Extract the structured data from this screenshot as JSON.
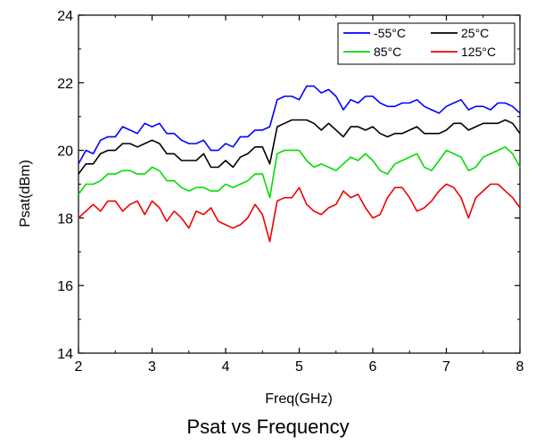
{
  "caption": "Psat vs Frequency",
  "chart_data": {
    "type": "line",
    "title": "",
    "xlabel": "Freq(GHz)",
    "ylabel": "Psat(dBm)",
    "xlim": [
      2,
      8
    ],
    "ylim": [
      14,
      24
    ],
    "xticks": [
      2,
      3,
      4,
      5,
      6,
      7,
      8
    ],
    "yticks": [
      14,
      16,
      18,
      20,
      22,
      24
    ],
    "grid": false,
    "legend_position": "top-right",
    "x": [
      2.0,
      2.1,
      2.2,
      2.3,
      2.4,
      2.5,
      2.6,
      2.7,
      2.8,
      2.9,
      3.0,
      3.1,
      3.2,
      3.3,
      3.4,
      3.5,
      3.6,
      3.7,
      3.8,
      3.9,
      4.0,
      4.1,
      4.2,
      4.3,
      4.4,
      4.5,
      4.6,
      4.7,
      4.8,
      4.9,
      5.0,
      5.1,
      5.2,
      5.3,
      5.4,
      5.5,
      5.6,
      5.7,
      5.8,
      5.9,
      6.0,
      6.1,
      6.2,
      6.3,
      6.4,
      6.5,
      6.6,
      6.7,
      6.8,
      6.9,
      7.0,
      7.1,
      7.2,
      7.3,
      7.4,
      7.5,
      7.6,
      7.7,
      7.8,
      7.9,
      8.0
    ],
    "series": [
      {
        "name": "-55°C",
        "color": "#0000ff",
        "values": [
          19.6,
          20.0,
          19.9,
          20.3,
          20.4,
          20.4,
          20.7,
          20.6,
          20.5,
          20.8,
          20.7,
          20.8,
          20.5,
          20.5,
          20.3,
          20.2,
          20.2,
          20.3,
          20.0,
          20.0,
          20.2,
          20.1,
          20.4,
          20.4,
          20.6,
          20.6,
          20.7,
          21.5,
          21.6,
          21.6,
          21.5,
          21.9,
          21.9,
          21.7,
          21.8,
          21.6,
          21.2,
          21.5,
          21.4,
          21.6,
          21.6,
          21.4,
          21.3,
          21.3,
          21.4,
          21.4,
          21.5,
          21.3,
          21.2,
          21.1,
          21.3,
          21.4,
          21.5,
          21.2,
          21.3,
          21.3,
          21.2,
          21.4,
          21.4,
          21.3,
          21.1
        ]
      },
      {
        "name": "25°C",
        "color": "#000000",
        "values": [
          19.3,
          19.6,
          19.6,
          19.9,
          20.0,
          20.0,
          20.2,
          20.2,
          20.1,
          20.2,
          20.3,
          20.2,
          19.9,
          19.9,
          19.7,
          19.7,
          19.7,
          19.9,
          19.5,
          19.5,
          19.7,
          19.5,
          19.8,
          19.9,
          20.1,
          20.1,
          19.6,
          20.7,
          20.8,
          20.9,
          20.9,
          20.9,
          20.8,
          20.6,
          20.8,
          20.6,
          20.4,
          20.7,
          20.7,
          20.6,
          20.7,
          20.5,
          20.4,
          20.5,
          20.5,
          20.6,
          20.7,
          20.5,
          20.5,
          20.5,
          20.6,
          20.8,
          20.8,
          20.6,
          20.7,
          20.8,
          20.8,
          20.8,
          20.9,
          20.8,
          20.5
        ]
      },
      {
        "name": "85°C",
        "color": "#00dd00",
        "values": [
          18.7,
          19.0,
          19.0,
          19.1,
          19.3,
          19.3,
          19.4,
          19.4,
          19.3,
          19.3,
          19.5,
          19.4,
          19.1,
          19.1,
          18.9,
          18.8,
          18.9,
          18.9,
          18.8,
          18.8,
          19.0,
          18.9,
          19.0,
          19.1,
          19.3,
          19.3,
          18.6,
          19.9,
          20.0,
          20.0,
          20.0,
          19.7,
          19.5,
          19.6,
          19.5,
          19.4,
          19.6,
          19.8,
          19.7,
          19.9,
          19.7,
          19.4,
          19.3,
          19.6,
          19.7,
          19.8,
          19.9,
          19.5,
          19.4,
          19.7,
          20.0,
          19.9,
          19.8,
          19.4,
          19.5,
          19.8,
          19.9,
          20.0,
          20.1,
          19.9,
          19.5
        ]
      },
      {
        "name": "125°C",
        "color": "#ee0000",
        "values": [
          18.0,
          18.2,
          18.4,
          18.2,
          18.5,
          18.5,
          18.2,
          18.4,
          18.5,
          18.1,
          18.5,
          18.3,
          17.9,
          18.2,
          18.0,
          17.7,
          18.2,
          18.1,
          18.3,
          17.9,
          17.8,
          17.7,
          17.8,
          18.0,
          18.4,
          18.1,
          17.3,
          18.5,
          18.6,
          18.6,
          18.9,
          18.4,
          18.2,
          18.1,
          18.3,
          18.4,
          18.8,
          18.6,
          18.7,
          18.3,
          18.0,
          18.1,
          18.6,
          18.9,
          18.9,
          18.6,
          18.2,
          18.3,
          18.5,
          18.8,
          19.0,
          18.9,
          18.6,
          18.0,
          18.6,
          18.8,
          19.0,
          19.0,
          18.8,
          18.6,
          18.3
        ]
      }
    ]
  }
}
